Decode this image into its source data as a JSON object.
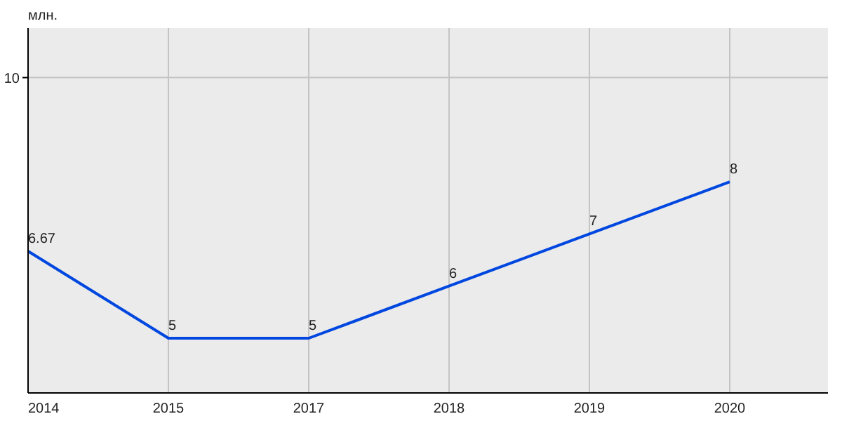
{
  "chart_data": {
    "type": "line",
    "ylabel": "млн.",
    "categories": [
      "2014",
      "2015",
      "2017",
      "2018",
      "2019",
      "2020"
    ],
    "series": [
      {
        "color": "#0047e0",
        "values": [
          6.67,
          5,
          5,
          6,
          7,
          8
        ]
      }
    ],
    "ylim": [
      3.95,
      10.95
    ],
    "ref_lines": [
      {
        "axis": "y",
        "value": 10,
        "label": "10",
        "color": "#c4c4c4"
      }
    ],
    "grid": "x",
    "data_labels": true,
    "marker": "none",
    "line_style": "solid"
  }
}
